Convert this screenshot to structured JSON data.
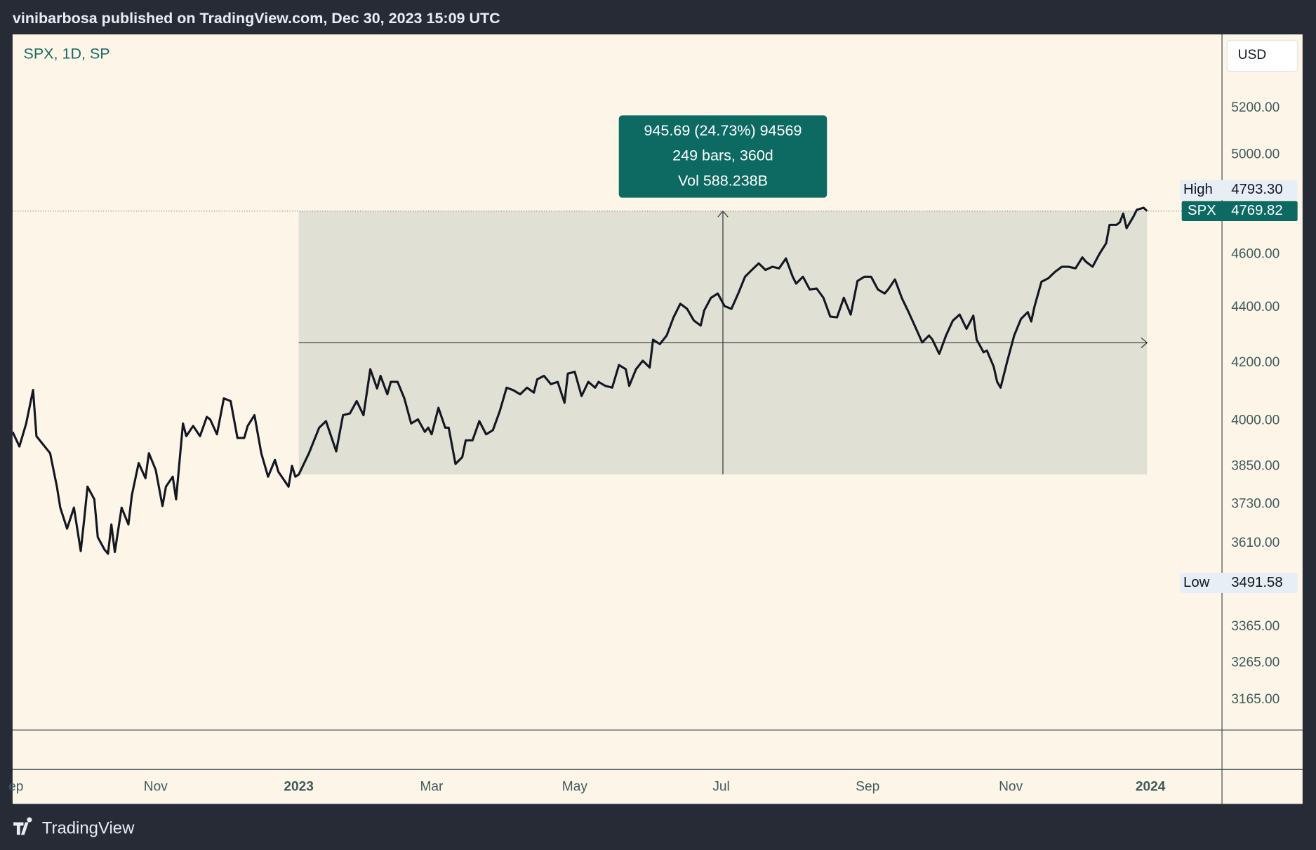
{
  "header": {
    "publisher": "vinibarbosa published on TradingView.com, Dec 30, 2023 15:09 UTC"
  },
  "footer": {
    "brand": "TradingView"
  },
  "chart_data": {
    "type": "line",
    "symbol_label": "SPX, 1D, SP",
    "currency": "USD",
    "x": [
      0,
      2,
      4,
      6,
      7,
      9,
      11,
      13,
      14,
      16,
      18,
      20,
      21,
      22,
      24,
      25,
      27,
      28,
      29,
      30,
      32,
      34,
      35,
      37,
      39,
      40,
      42,
      44,
      45,
      47,
      48,
      50,
      51,
      53,
      55,
      57,
      58,
      60,
      62,
      64,
      66,
      68,
      69,
      71,
      73,
      75,
      77,
      78,
      81,
      82,
      83,
      84,
      87,
      90,
      92,
      95,
      97,
      99,
      101,
      103,
      105,
      107,
      108,
      110,
      111,
      113,
      115,
      117,
      119,
      121,
      122,
      123,
      125,
      127,
      128,
      130,
      132,
      133,
      135,
      137,
      139,
      141,
      143,
      145,
      147,
      149,
      151,
      153,
      154,
      156,
      158,
      160,
      162,
      163,
      165,
      167,
      169,
      171,
      172,
      174,
      176,
      178,
      180,
      181,
      183,
      185,
      187,
      188,
      190,
      192,
      194,
      196,
      198,
      200,
      202,
      203,
      205,
      207,
      209,
      211,
      213,
      215,
      217,
      219,
      221,
      223,
      225,
      227,
      229,
      230,
      232,
      234,
      236,
      238,
      240,
      242,
      244,
      246,
      248,
      250,
      252,
      254,
      256,
      257,
      259,
      261,
      263,
      265,
      267,
      269,
      270,
      272,
      274,
      276,
      278,
      280,
      282,
      283,
      285,
      286,
      288,
      289,
      290,
      292,
      294,
      296,
      298,
      299,
      300,
      302,
      304,
      306,
      308,
      310,
      312,
      314,
      315,
      317,
      319,
      321,
      322,
      324,
      325,
      326,
      327,
      329,
      330,
      332,
      333
    ],
    "series": [
      {
        "name": "SPX",
        "color": "#131722",
        "values": [
          3963,
          3915,
          3991,
          4105,
          3949,
          3921,
          3893,
          3785,
          3719,
          3654,
          3719,
          3586,
          3680,
          3785,
          3745,
          3628,
          3590,
          3578,
          3667,
          3583,
          3719,
          3667,
          3758,
          3861,
          3812,
          3893,
          3839,
          3724,
          3785,
          3817,
          3745,
          3991,
          3949,
          3983,
          3949,
          4013,
          4005,
          3955,
          4076,
          4067,
          3943,
          3943,
          3983,
          4019,
          3893,
          3817,
          3871,
          3833,
          3785,
          3852,
          3817,
          3824.13,
          3893,
          3977,
          3999,
          3899,
          4019,
          4025,
          4067,
          4019,
          4177,
          4110,
          4154,
          4090,
          4133,
          4133,
          4076,
          3991,
          4005,
          3963,
          3977,
          3955,
          4044,
          3977,
          3977,
          3858,
          3880,
          3935,
          3935,
          3999,
          3955,
          3969,
          4033,
          4113,
          4104,
          4090,
          4113,
          4096,
          4142,
          4154,
          4125,
          4133,
          4061,
          4162,
          4168,
          4084,
          4133,
          4113,
          4133,
          4119,
          4113,
          4192,
          4177,
          4119,
          4177,
          4207,
          4183,
          4282,
          4266,
          4297,
          4363,
          4413,
          4394,
          4351,
          4333,
          4388,
          4435,
          4451,
          4404,
          4394,
          4451,
          4514,
          4540,
          4565,
          4540,
          4552,
          4546,
          4584,
          4514,
          4488,
          4514,
          4466,
          4470,
          4435,
          4366,
          4363,
          4435,
          4373,
          4498,
          4514,
          4514,
          4466,
          4451,
          4466,
          4504,
          4435,
          4382,
          4327,
          4272,
          4297,
          4282,
          4231,
          4297,
          4351,
          4373,
          4321,
          4369,
          4282,
          4237,
          4243,
          4186,
          4133,
          4113,
          4207,
          4297,
          4357,
          4382,
          4348,
          4404,
          4495,
          4508,
          4533,
          4552,
          4552,
          4546,
          4588,
          4572,
          4552,
          4601,
          4643,
          4715,
          4715,
          4725,
          4760,
          4702,
          4748,
          4775,
          4783,
          4769.82
        ]
      }
    ],
    "xlim": [
      0,
      355
    ],
    "xticks": [
      {
        "value": 1,
        "label": "ep"
      },
      {
        "value": 42,
        "label": "Nov"
      },
      {
        "value": 84,
        "label": "2023"
      },
      {
        "value": 123,
        "label": "Mar"
      },
      {
        "value": 165,
        "label": "May"
      },
      {
        "value": 208,
        "label": "Jul"
      },
      {
        "value": 251,
        "label": "Sep"
      },
      {
        "value": 293,
        "label": "Nov"
      },
      {
        "value": 334,
        "label": "2024"
      }
    ],
    "ylim": [
      3086,
      5532
    ],
    "log_y": true,
    "grid": false,
    "yticks": [
      {
        "value": 5200,
        "label": "5200.00"
      },
      {
        "value": 5000,
        "label": "5000.00"
      },
      {
        "value": 4600,
        "label": "4600.00"
      },
      {
        "value": 4400,
        "label": "4400.00"
      },
      {
        "value": 4200,
        "label": "4200.00"
      },
      {
        "value": 4000,
        "label": "4000.00"
      },
      {
        "value": 3850,
        "label": "3850.00"
      },
      {
        "value": 3730,
        "label": "3730.00"
      },
      {
        "value": 3610,
        "label": "3610.00"
      },
      {
        "value": 3365,
        "label": "3365.00"
      },
      {
        "value": 3265,
        "label": "3265.00"
      },
      {
        "value": 3165,
        "label": "3165.00"
      }
    ],
    "price_labels": [
      {
        "name": "High",
        "value": 4793.3,
        "label": "4793.30"
      },
      {
        "name": "Low",
        "value": 3491.58
      }
    ],
    "measure": {
      "x": [
        84,
        333
      ],
      "y": [
        3824.13,
        4769.82
      ],
      "lines": [
        "945.69 (24.73%) 94569",
        "249 bars, 360d",
        "Vol 588.238B"
      ]
    }
  }
}
